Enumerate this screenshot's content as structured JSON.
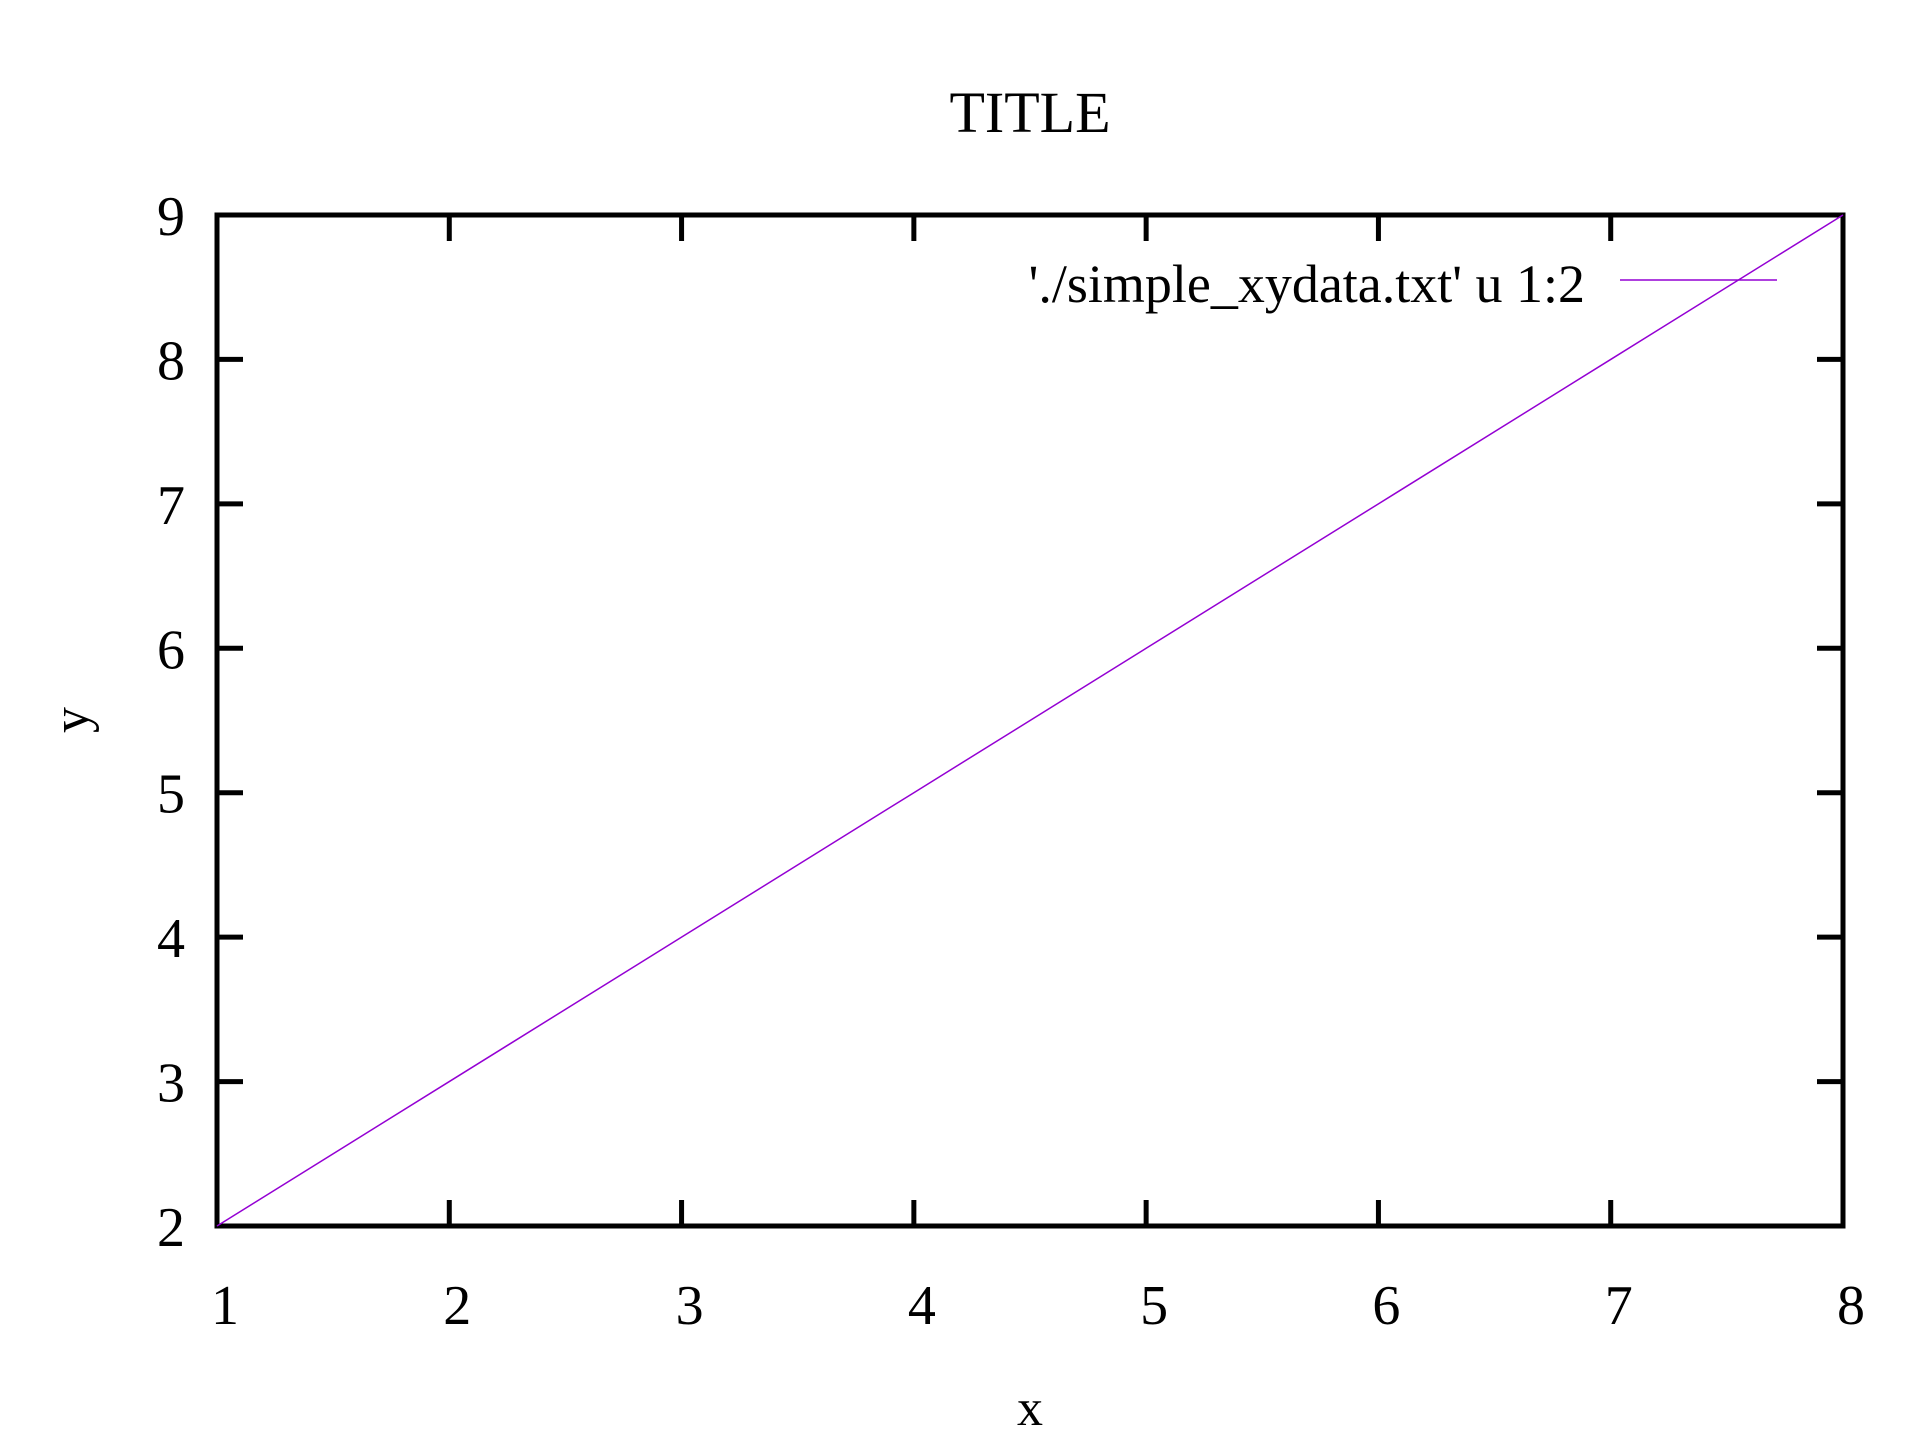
{
  "chart_data": {
    "type": "line",
    "title": "TITLE",
    "xlabel": "x",
    "ylabel": "y",
    "xlim": [
      1,
      8
    ],
    "ylim": [
      2,
      9
    ],
    "xticks": [
      "1",
      "2",
      "3",
      "4",
      "5",
      "6",
      "7",
      "8"
    ],
    "yticks": [
      "2",
      "3",
      "4",
      "5",
      "6",
      "7",
      "8",
      "9"
    ],
    "grid": false,
    "legend_position": "top-right",
    "series": [
      {
        "name": "'./simple_xydata.txt' u 1:2",
        "color": "#9400d3",
        "x": [
          1,
          2,
          3,
          4,
          5,
          6,
          7,
          8
        ],
        "y": [
          2,
          3,
          4,
          5,
          6,
          7,
          8,
          9
        ]
      }
    ]
  }
}
